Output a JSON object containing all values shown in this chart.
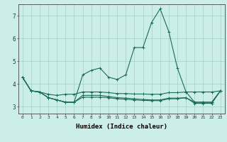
{
  "xlabel": "Humidex (Indice chaleur)",
  "background_color": "#cceee8",
  "grid_color": "#aad4ce",
  "line_color": "#1a6b5a",
  "xlim": [
    -0.5,
    23.5
  ],
  "ylim": [
    2.7,
    7.5
  ],
  "yticks": [
    3,
    4,
    5,
    6,
    7
  ],
  "xticks": [
    0,
    1,
    2,
    3,
    4,
    5,
    6,
    7,
    8,
    9,
    10,
    11,
    12,
    13,
    14,
    15,
    16,
    17,
    18,
    19,
    20,
    21,
    22,
    23
  ],
  "series": [
    [
      4.3,
      3.7,
      3.65,
      3.4,
      3.3,
      3.2,
      3.2,
      4.4,
      4.6,
      4.7,
      4.3,
      4.2,
      4.4,
      5.6,
      5.6,
      6.7,
      7.3,
      6.3,
      4.7,
      3.65,
      3.2,
      3.2,
      3.2,
      3.7
    ],
    [
      4.3,
      3.7,
      3.65,
      3.55,
      3.5,
      3.55,
      3.55,
      3.65,
      3.65,
      3.65,
      3.62,
      3.58,
      3.58,
      3.56,
      3.56,
      3.55,
      3.55,
      3.62,
      3.62,
      3.65,
      3.65,
      3.65,
      3.65,
      3.7
    ],
    [
      4.3,
      3.7,
      3.65,
      3.4,
      3.3,
      3.2,
      3.2,
      3.5,
      3.5,
      3.5,
      3.45,
      3.4,
      3.38,
      3.35,
      3.32,
      3.3,
      3.3,
      3.38,
      3.38,
      3.4,
      3.2,
      3.2,
      3.2,
      3.7
    ],
    [
      4.3,
      3.7,
      3.65,
      3.4,
      3.3,
      3.2,
      3.2,
      3.42,
      3.42,
      3.42,
      3.4,
      3.35,
      3.33,
      3.3,
      3.28,
      3.27,
      3.27,
      3.35,
      3.35,
      3.4,
      3.15,
      3.15,
      3.15,
      3.7
    ]
  ],
  "marker": "+",
  "markersize": 3,
  "linewidth": 0.8
}
